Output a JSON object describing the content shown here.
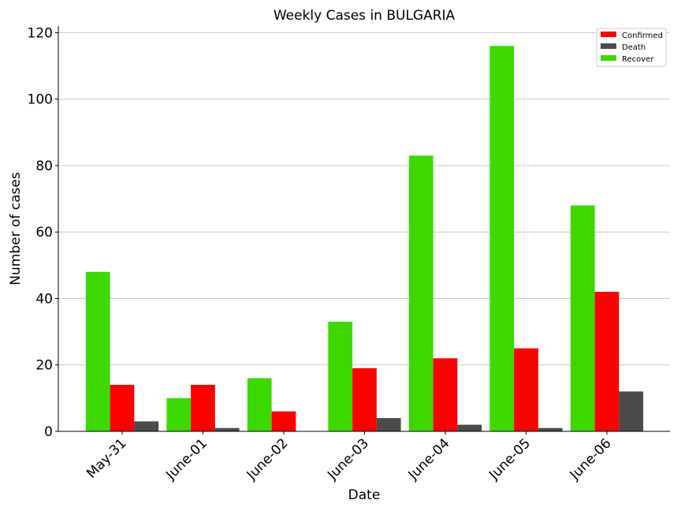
{
  "chart_data": {
    "type": "bar",
    "title": "Weekly Cases in BULGARIA",
    "xlabel": "Date",
    "ylabel": "Number of cases",
    "categories": [
      "May-31",
      "June-01",
      "June-02",
      "June-03",
      "June-04",
      "June-05",
      "June-06"
    ],
    "series": [
      {
        "name": "Recover",
        "color": "#3dd800",
        "values": [
          48,
          10,
          16,
          33,
          83,
          116,
          68
        ]
      },
      {
        "name": "Confirmed",
        "color": "#ff0000",
        "values": [
          14,
          14,
          6,
          19,
          22,
          25,
          42
        ]
      },
      {
        "name": "Death",
        "color": "#4b4b4b",
        "values": [
          3,
          1,
          0,
          4,
          2,
          1,
          12
        ]
      }
    ],
    "legend_order": [
      "Confirmed",
      "Death",
      "Recover"
    ],
    "ylim": [
      0,
      122
    ],
    "yticks": [
      0,
      20,
      40,
      60,
      80,
      100,
      120
    ],
    "grid": "horizontal",
    "legend_position": "top-right"
  }
}
